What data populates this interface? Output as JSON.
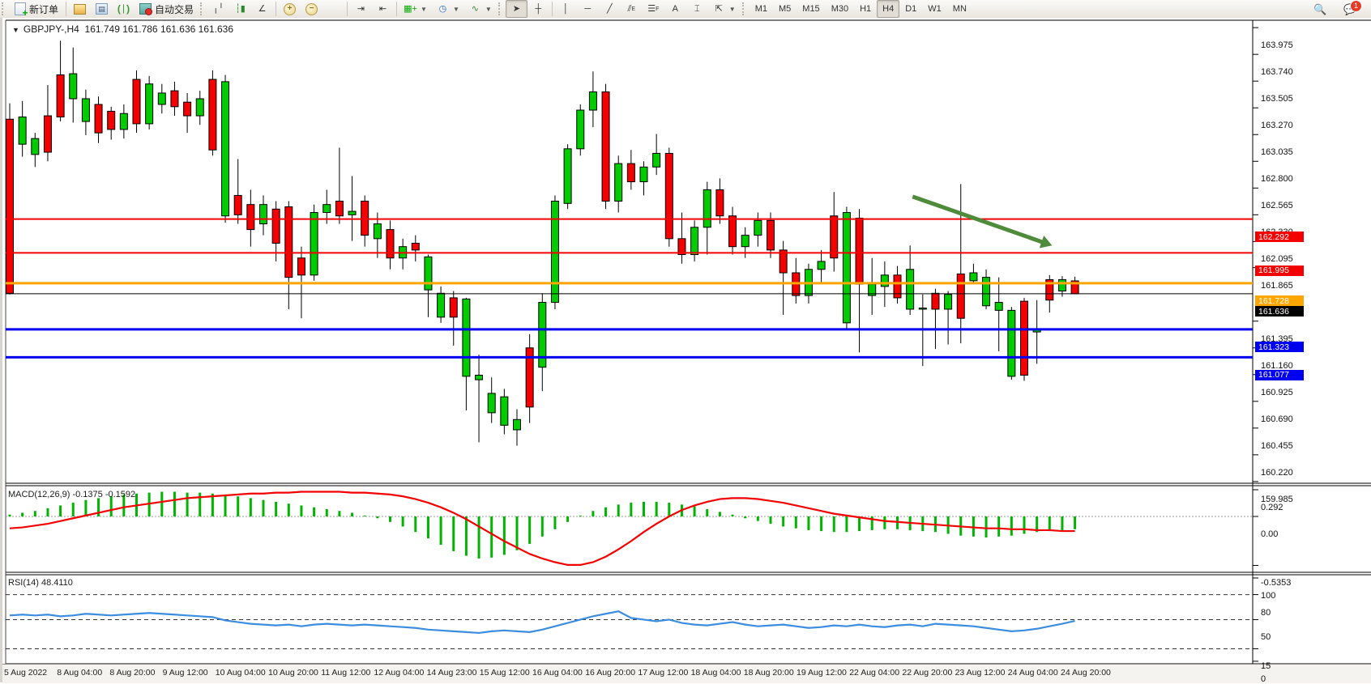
{
  "toolbar": {
    "new_order_label": "新订单",
    "auto_trading_label": "自动交易",
    "timeframes": [
      "M1",
      "M5",
      "M15",
      "M30",
      "H1",
      "H4",
      "D1",
      "W1",
      "MN"
    ],
    "active_timeframe": "H4",
    "chat_badge": "1",
    "icons": [
      "new-order",
      "market-watch",
      "data-window",
      "navigator",
      "auto-trading",
      "bar-chart",
      "candlestick-chart",
      "line-chart",
      "zoom-in",
      "zoom-out",
      "tile-windows",
      "chart-shift",
      "chart-autoscroll",
      "new-chart",
      "periods",
      "templates",
      "cursor",
      "crosshair",
      "vertical-line",
      "horizontal-line",
      "trendline",
      "equidistant-channel",
      "fibonacci",
      "text",
      "text-label",
      "arrows",
      "search",
      "chat"
    ]
  },
  "chart": {
    "title": "GBPJPY-,H4",
    "ohlc_text": "161.749 161.786 161.636 161.636",
    "macd_label": "MACD(12,26,9) -0.1375 -0.1592",
    "rsi_label": "RSI(14) 48.4110",
    "colors": {
      "bull": "#00cc00",
      "bear": "#f40000",
      "wick": "#000000",
      "macd_hist": "#00b400",
      "macd_signal": "#f40000",
      "rsi_line": "#3b8de0",
      "line_red": "#f40000",
      "line_orange": "#ffa500",
      "line_black": "#000000",
      "line_blue": "#0000f0",
      "arrow_green": "#4e8c3c"
    },
    "price_ticks": [
      "163.975",
      "163.740",
      "163.505",
      "163.270",
      "163.035",
      "162.800",
      "162.565",
      "162.330",
      "162.095",
      "161.865",
      "161.395",
      "161.160",
      "160.925",
      "160.690",
      "160.455",
      "160.220",
      "159.985"
    ],
    "hlines": [
      {
        "price": 162.292,
        "label": "162.292",
        "color": "#f40000",
        "width": 2
      },
      {
        "price": 161.995,
        "label": "161.995",
        "color": "#f40000",
        "width": 2
      },
      {
        "price": 161.728,
        "label": "161.728",
        "color": "#ffa500",
        "width": 3
      },
      {
        "price": 161.636,
        "label": "161.636",
        "color": "#000000",
        "width": 1
      },
      {
        "price": 161.323,
        "label": "161.323",
        "color": "#0000f0",
        "width": 3
      },
      {
        "price": 161.077,
        "label": "161.077",
        "color": "#0000f0",
        "width": 3
      }
    ],
    "macd_ticks": [
      {
        "v": 0.292,
        "label": "0.292"
      },
      {
        "v": 0.0,
        "label": "0.00"
      },
      {
        "v": -0.5353,
        "label": "-0.5353"
      }
    ],
    "rsi_ticks": [
      {
        "v": 100,
        "label": "100"
      },
      {
        "v": 80,
        "label": "80"
      },
      {
        "v": 50,
        "label": "50"
      },
      {
        "v": 15,
        "label": "15"
      },
      {
        "v": 0,
        "label": "0"
      }
    ],
    "rsi_levels": [
      80,
      50,
      15
    ],
    "dates": [
      "5 Aug 2022",
      "8 Aug 04:00",
      "8 Aug 20:00",
      "9 Aug 12:00",
      "10 Aug 04:00",
      "10 Aug 20:00",
      "11 Aug 12:00",
      "12 Aug 04:00",
      "14 Aug 23:00",
      "15 Aug 12:00",
      "16 Aug 04:00",
      "16 Aug 20:00",
      "17 Aug 12:00",
      "18 Aug 04:00",
      "18 Aug 20:00",
      "19 Aug 12:00",
      "22 Aug 04:00",
      "22 Aug 20:00",
      "23 Aug 12:00",
      "24 Aug 04:00",
      "24 Aug 20:00"
    ],
    "arrow": {
      "x1_idx": 71.2,
      "p1": 162.49,
      "x2_idx": 82.2,
      "p2": 162.06
    }
  },
  "chart_data": {
    "type": "candlestick",
    "symbol": "GBPJPY",
    "period": "H4",
    "ohlc": [
      [
        163.17,
        163.31,
        161.63,
        161.64
      ],
      [
        162.95,
        163.33,
        162.84,
        163.19
      ],
      [
        162.86,
        163.05,
        162.75,
        163.0
      ],
      [
        163.2,
        163.47,
        162.8,
        162.88
      ],
      [
        163.56,
        163.86,
        163.15,
        163.19
      ],
      [
        163.35,
        163.8,
        163.14,
        163.57
      ],
      [
        163.15,
        163.43,
        163.03,
        163.35
      ],
      [
        163.3,
        163.37,
        162.96,
        163.05
      ],
      [
        163.24,
        163.28,
        162.99,
        163.08
      ],
      [
        163.08,
        163.3,
        163.0,
        163.22
      ],
      [
        163.52,
        163.6,
        163.05,
        163.13
      ],
      [
        163.13,
        163.55,
        163.08,
        163.48
      ],
      [
        163.3,
        163.48,
        163.22,
        163.4
      ],
      [
        163.42,
        163.5,
        163.2,
        163.28
      ],
      [
        163.32,
        163.4,
        163.05,
        163.2
      ],
      [
        163.2,
        163.42,
        163.12,
        163.35
      ],
      [
        163.52,
        163.6,
        162.85,
        162.9
      ],
      [
        162.32,
        163.56,
        162.26,
        163.5
      ],
      [
        162.5,
        162.82,
        162.25,
        162.33
      ],
      [
        162.42,
        162.55,
        162.05,
        162.2
      ],
      [
        162.25,
        162.5,
        162.15,
        162.42
      ],
      [
        162.38,
        162.45,
        161.92,
        162.08
      ],
      [
        162.4,
        162.45,
        161.5,
        161.78
      ],
      [
        161.95,
        162.05,
        161.42,
        161.8
      ],
      [
        161.8,
        162.42,
        161.75,
        162.35
      ],
      [
        162.35,
        162.55,
        162.25,
        162.42
      ],
      [
        162.45,
        162.92,
        162.25,
        162.32
      ],
      [
        162.33,
        162.67,
        162.1,
        162.36
      ],
      [
        162.45,
        162.5,
        162.05,
        162.15
      ],
      [
        162.12,
        162.35,
        161.95,
        162.25
      ],
      [
        162.2,
        162.28,
        161.85,
        161.95
      ],
      [
        161.95,
        162.12,
        161.85,
        162.05
      ],
      [
        162.08,
        162.15,
        161.92,
        162.02
      ],
      [
        161.67,
        161.98,
        161.43,
        161.96
      ],
      [
        161.43,
        161.7,
        161.38,
        161.64
      ],
      [
        161.6,
        161.66,
        161.18,
        161.43
      ],
      [
        160.91,
        161.6,
        160.61,
        161.59
      ],
      [
        160.88,
        161.1,
        160.33,
        160.92
      ],
      [
        160.59,
        160.9,
        160.5,
        160.76
      ],
      [
        160.48,
        160.8,
        160.4,
        160.73
      ],
      [
        160.44,
        160.62,
        160.3,
        160.53
      ],
      [
        161.16,
        161.28,
        160.5,
        160.64
      ],
      [
        160.99,
        161.64,
        160.78,
        161.56
      ],
      [
        161.56,
        162.5,
        161.5,
        162.45
      ],
      [
        162.43,
        162.95,
        162.38,
        162.91
      ],
      [
        162.91,
        163.3,
        162.85,
        163.25
      ],
      [
        163.25,
        163.59,
        163.1,
        163.41
      ],
      [
        163.41,
        163.48,
        162.38,
        162.45
      ],
      [
        162.45,
        162.85,
        162.35,
        162.78
      ],
      [
        162.78,
        162.9,
        162.55,
        162.62
      ],
      [
        162.62,
        162.8,
        162.5,
        162.75
      ],
      [
        162.75,
        163.04,
        162.68,
        162.87
      ],
      [
        162.87,
        162.92,
        162.05,
        162.12
      ],
      [
        162.12,
        162.35,
        161.9,
        161.98
      ],
      [
        161.98,
        162.28,
        161.92,
        162.22
      ],
      [
        162.22,
        162.62,
        161.98,
        162.55
      ],
      [
        162.55,
        162.65,
        162.25,
        162.32
      ],
      [
        162.32,
        162.4,
        161.98,
        162.05
      ],
      [
        162.05,
        162.22,
        161.95,
        162.15
      ],
      [
        162.15,
        162.35,
        162.05,
        162.28
      ],
      [
        162.28,
        162.35,
        161.95,
        162.02
      ],
      [
        162.02,
        162.1,
        161.45,
        161.82
      ],
      [
        161.82,
        161.95,
        161.55,
        161.62
      ],
      [
        161.62,
        161.9,
        161.55,
        161.85
      ],
      [
        161.85,
        162.02,
        161.72,
        161.92
      ],
      [
        162.32,
        162.53,
        161.83,
        161.95
      ],
      [
        161.38,
        162.4,
        161.32,
        162.35
      ],
      [
        162.3,
        162.38,
        161.12,
        161.72
      ],
      [
        161.62,
        161.95,
        161.45,
        161.72
      ],
      [
        161.7,
        161.92,
        161.52,
        161.8
      ],
      [
        161.8,
        161.88,
        161.55,
        161.6
      ],
      [
        161.5,
        162.06,
        161.45,
        161.85
      ],
      [
        161.5,
        161.63,
        161.0,
        161.51
      ],
      [
        161.64,
        161.68,
        161.15,
        161.5
      ],
      [
        161.5,
        161.66,
        161.19,
        161.63
      ],
      [
        161.81,
        162.6,
        161.2,
        161.42
      ],
      [
        161.75,
        161.9,
        161.72,
        161.82
      ],
      [
        161.53,
        161.85,
        161.5,
        161.78
      ],
      [
        161.49,
        161.78,
        161.13,
        161.56
      ],
      [
        160.91,
        161.52,
        160.88,
        161.49
      ],
      [
        161.57,
        161.6,
        160.87,
        160.92
      ],
      [
        161.3,
        161.58,
        161.02,
        161.32
      ],
      [
        161.76,
        161.8,
        161.47,
        161.58
      ],
      [
        161.66,
        161.79,
        161.61,
        161.76
      ],
      [
        161.749,
        161.786,
        161.636,
        161.636
      ]
    ],
    "macd_hist": [
      0.02,
      0.04,
      0.06,
      0.09,
      0.12,
      0.15,
      0.18,
      0.2,
      0.22,
      0.24,
      0.25,
      0.26,
      0.27,
      0.27,
      0.26,
      0.26,
      0.25,
      0.24,
      0.22,
      0.2,
      0.18,
      0.16,
      0.14,
      0.12,
      0.1,
      0.08,
      0.06,
      0.04,
      0.01,
      -0.02,
      -0.06,
      -0.11,
      -0.17,
      -0.24,
      -0.31,
      -0.38,
      -0.43,
      -0.46,
      -0.45,
      -0.42,
      -0.37,
      -0.3,
      -0.22,
      -0.14,
      -0.06,
      0.01,
      0.06,
      0.1,
      0.13,
      0.15,
      0.16,
      0.16,
      0.15,
      0.13,
      0.11,
      0.08,
      0.05,
      0.02,
      -0.02,
      -0.05,
      -0.08,
      -0.11,
      -0.13,
      -0.15,
      -0.16,
      -0.17,
      -0.17,
      -0.16,
      -0.15,
      -0.14,
      -0.14,
      -0.15,
      -0.16,
      -0.17,
      -0.19,
      -0.21,
      -0.22,
      -0.23,
      -0.22,
      -0.21,
      -0.19,
      -0.17,
      -0.16,
      -0.15,
      -0.14
    ],
    "macd_signal": [
      -0.13,
      -0.12,
      -0.1,
      -0.08,
      -0.05,
      -0.02,
      0.01,
      0.04,
      0.07,
      0.1,
      0.12,
      0.14,
      0.16,
      0.18,
      0.2,
      0.21,
      0.22,
      0.23,
      0.24,
      0.25,
      0.25,
      0.26,
      0.26,
      0.27,
      0.27,
      0.27,
      0.27,
      0.26,
      0.26,
      0.25,
      0.24,
      0.22,
      0.19,
      0.15,
      0.1,
      0.04,
      -0.03,
      -0.11,
      -0.19,
      -0.27,
      -0.34,
      -0.41,
      -0.46,
      -0.5,
      -0.53,
      -0.53,
      -0.5,
      -0.44,
      -0.36,
      -0.27,
      -0.17,
      -0.08,
      0.0,
      0.07,
      0.12,
      0.16,
      0.19,
      0.2,
      0.2,
      0.19,
      0.17,
      0.15,
      0.12,
      0.09,
      0.06,
      0.03,
      0.01,
      -0.01,
      -0.03,
      -0.05,
      -0.06,
      -0.07,
      -0.08,
      -0.09,
      -0.1,
      -0.11,
      -0.12,
      -0.13,
      -0.13,
      -0.14,
      -0.14,
      -0.15,
      -0.15,
      -0.16,
      -0.16
    ],
    "rsi": [
      55,
      56,
      55,
      56,
      54,
      55,
      57,
      56,
      55,
      56,
      57,
      58,
      57,
      56,
      55,
      54,
      53,
      49,
      47,
      45,
      44,
      43,
      44,
      42,
      44,
      45,
      44,
      43,
      44,
      43,
      42,
      41,
      40,
      38,
      37,
      36,
      35,
      34,
      36,
      37,
      36,
      35,
      38,
      42,
      46,
      50,
      54,
      57,
      60,
      52,
      50,
      48,
      50,
      46,
      44,
      43,
      45,
      47,
      44,
      42,
      43,
      44,
      42,
      40,
      41,
      43,
      42,
      44,
      42,
      41,
      43,
      44,
      42,
      45,
      44,
      43,
      42,
      40,
      38,
      36,
      37,
      39,
      42,
      45,
      48.41
    ],
    "macd_value": -0.1375,
    "macd_signal_value": -0.1592,
    "rsi_value": 48.411
  }
}
